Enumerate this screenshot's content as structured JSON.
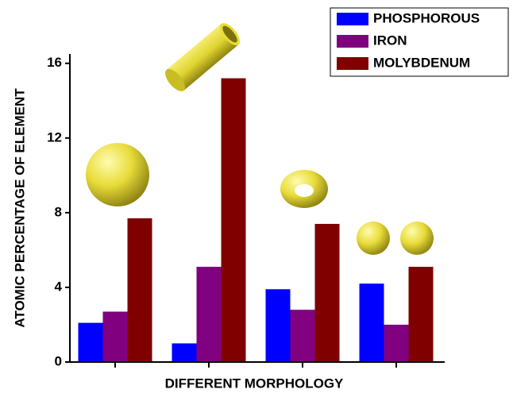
{
  "chart_data": {
    "type": "bar",
    "ylabel": "ATOMIC PERCENTAGE OF ELEMENT",
    "xlabel": "DIFFERENT MORPHOLOGY",
    "categories": [
      null,
      null,
      null,
      null
    ],
    "series": [
      {
        "name": "PHOSPHOROUS",
        "color": "#0000ff",
        "values": [
          2.1,
          1.0,
          3.9,
          4.2
        ]
      },
      {
        "name": "IRON",
        "color": "#800080",
        "values": [
          2.7,
          5.1,
          2.8,
          2.0
        ]
      },
      {
        "name": "MOLYBDENUM",
        "color": "#800000",
        "values": [
          7.7,
          15.2,
          7.4,
          5.1
        ]
      }
    ],
    "ylim": [
      0,
      16.5
    ],
    "yticks": [
      0,
      4,
      8,
      12,
      16
    ],
    "legend": "upper right"
  }
}
